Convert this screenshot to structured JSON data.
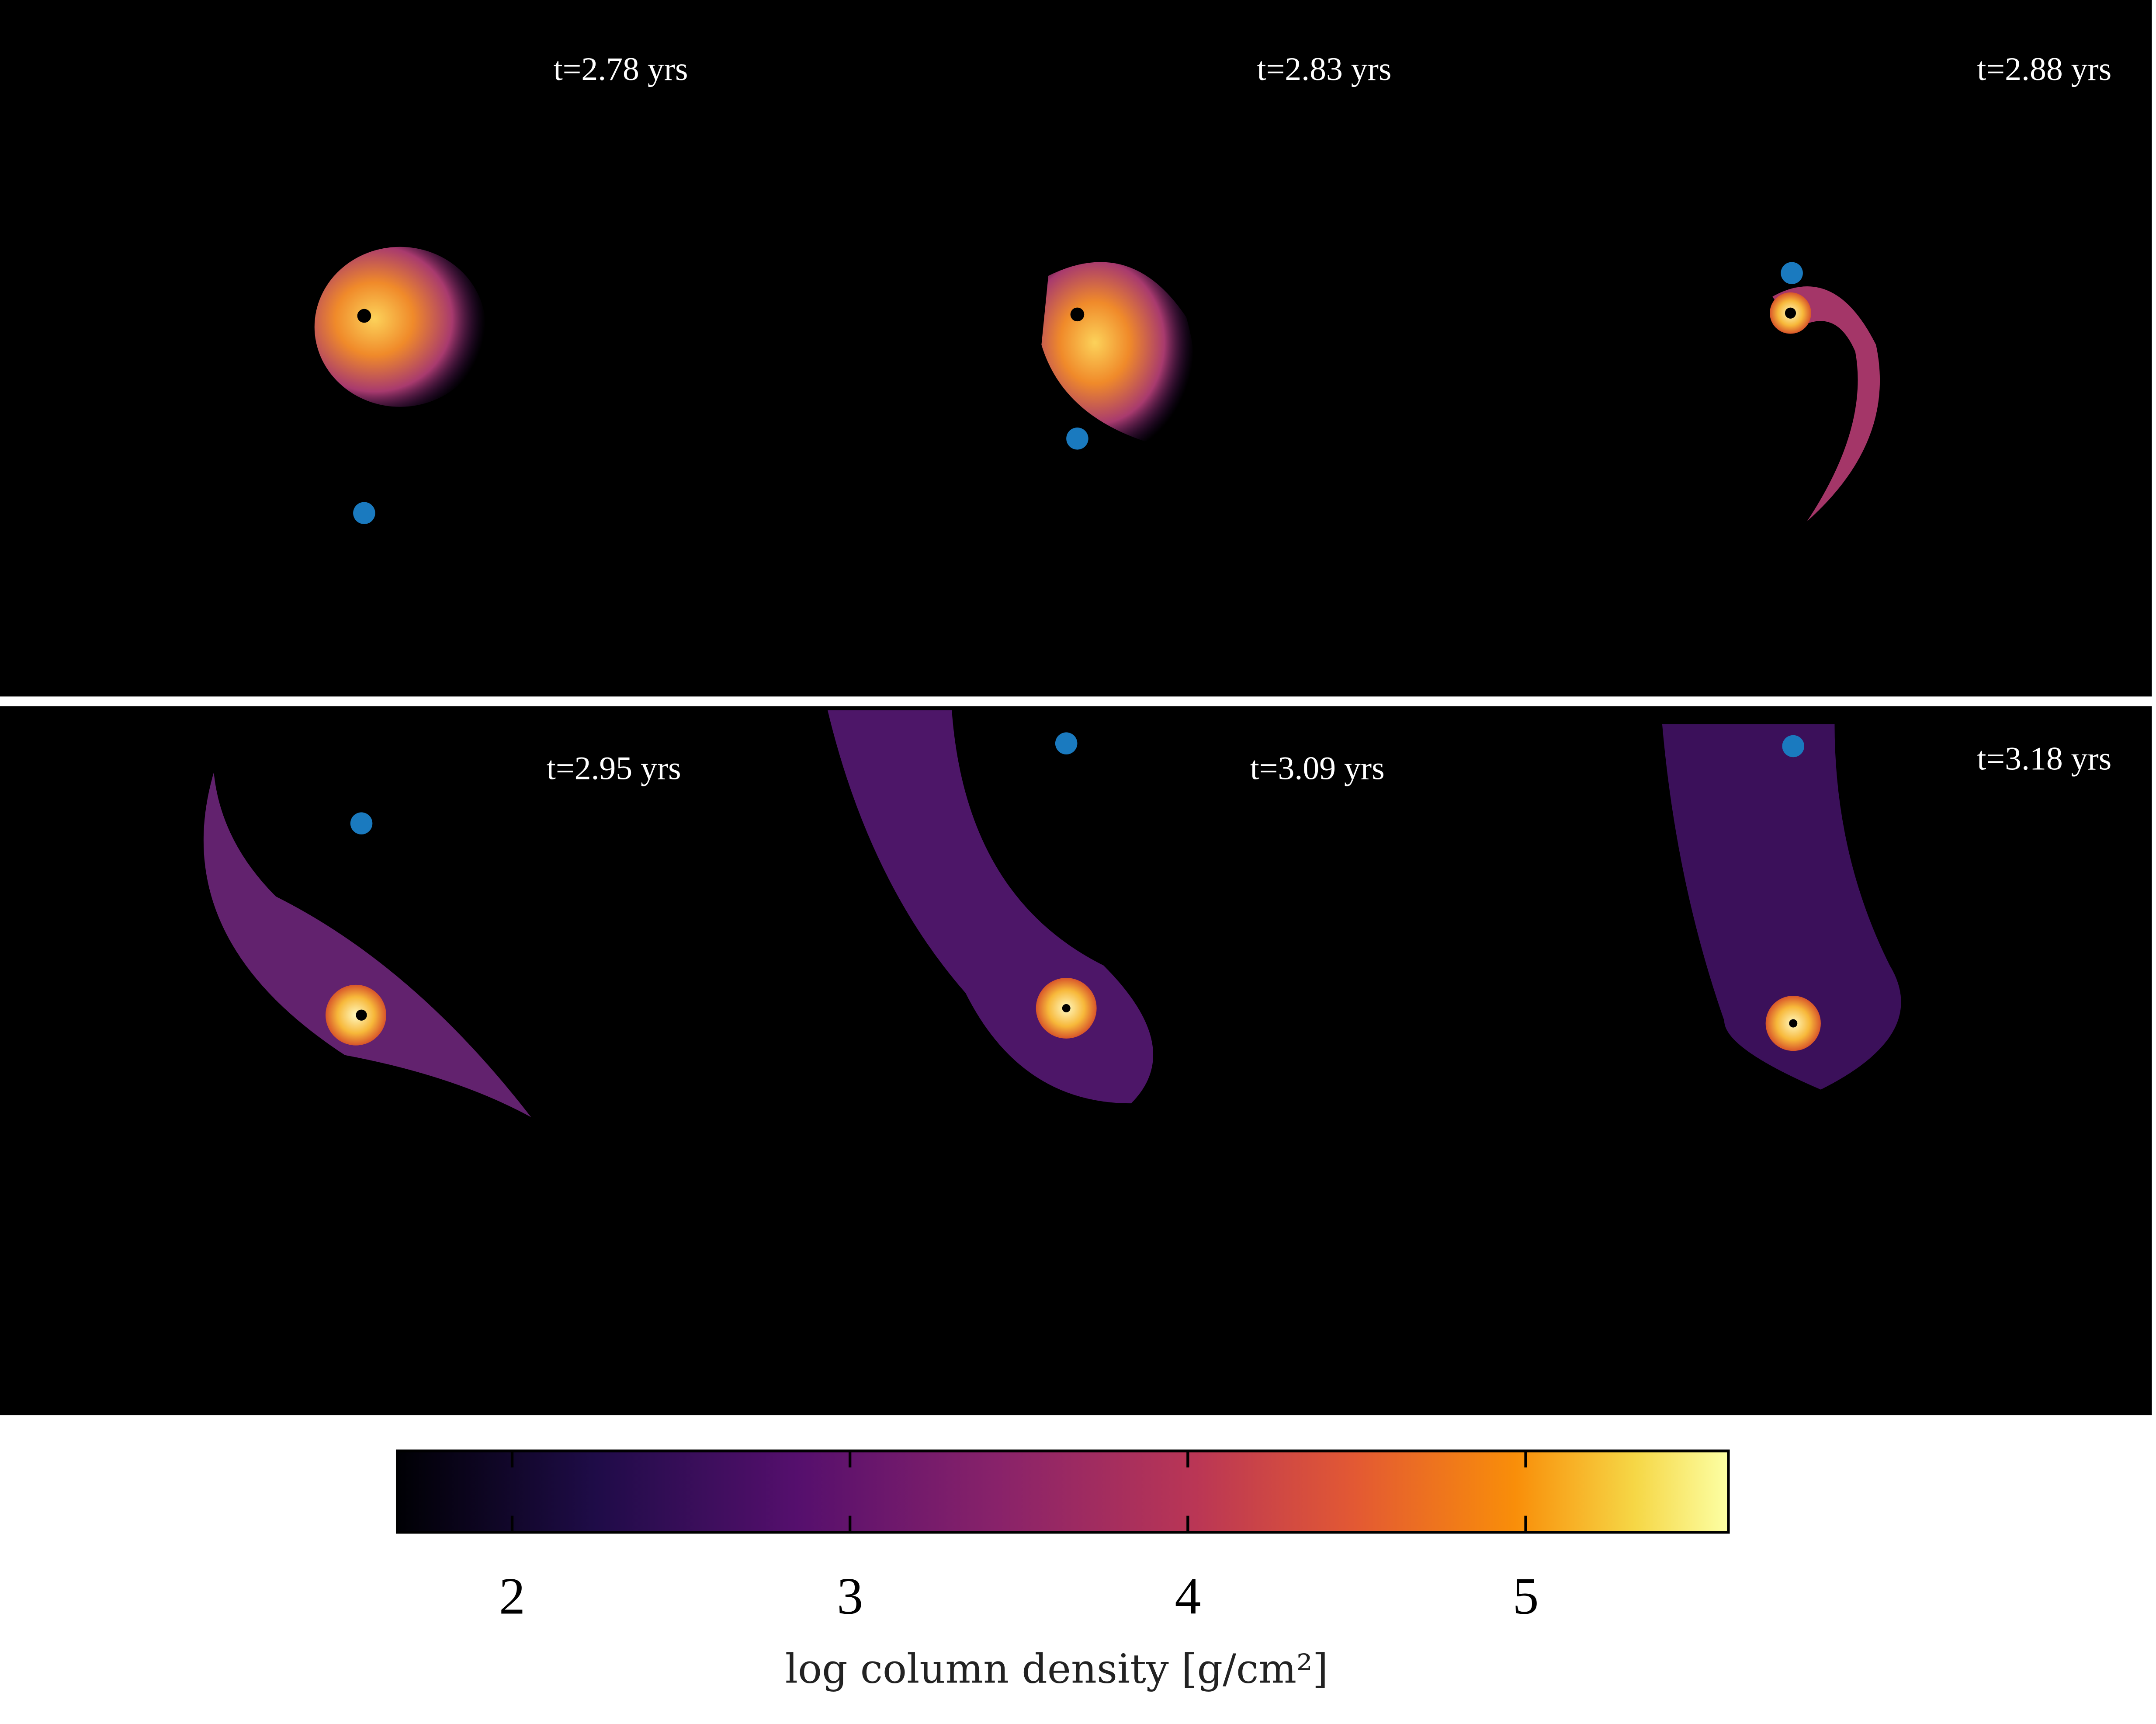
{
  "chart_data": {
    "type": "colorbar",
    "panel_labels": [
      "t=2.78 yrs",
      "t=2.83 yrs",
      "t=2.88 yrs",
      "t=2.95 yrs",
      "t=3.09 yrs",
      "t=3.18 yrs"
    ],
    "colorbar_label": "log column density [g/cm²]",
    "xlim": [
      1.66,
      5.6
    ],
    "xticks": [
      2,
      3,
      4,
      5
    ]
  }
}
